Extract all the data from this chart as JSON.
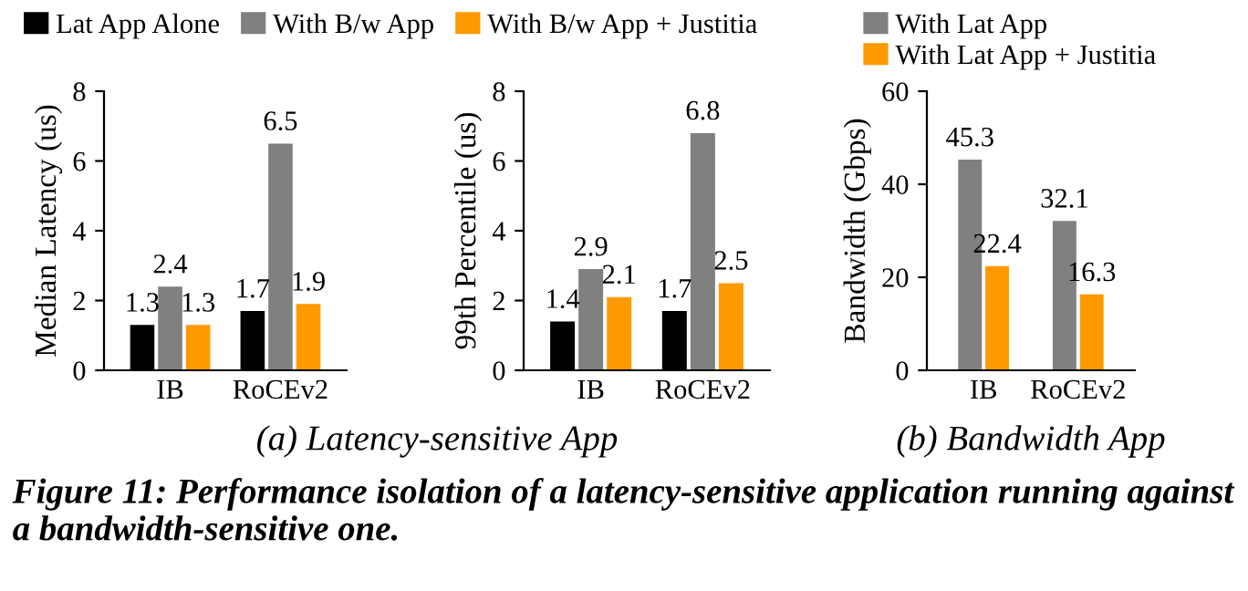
{
  "chart_data": [
    {
      "type": "bar",
      "ylabel": "Median Latency (us)",
      "categories": [
        "IB",
        "RoCEv2"
      ],
      "ylim": [
        0,
        8
      ],
      "yticks": [
        0,
        2,
        4,
        6,
        8
      ],
      "data_labels": true,
      "legend": "top",
      "grid": false,
      "series": [
        {
          "name": "Lat App Alone",
          "color": "#000000",
          "values": [
            1.3,
            1.7
          ]
        },
        {
          "name": "With B/w App",
          "color": "#808080",
          "values": [
            2.4,
            6.5
          ]
        },
        {
          "name": "With B/w App + Justitia",
          "color": "#ff9900",
          "values": [
            1.3,
            1.9
          ]
        }
      ],
      "annotations": [
        "(a) Latency-sensitive App",
        "Figure 11: Performance isolation of a latency-sensitive application running against a bandwidth-sensitive one."
      ]
    },
    {
      "type": "bar",
      "ylabel": "99th Percentile (us)",
      "categories": [
        "IB",
        "RoCEv2"
      ],
      "ylim": [
        0,
        8
      ],
      "yticks": [
        0,
        2,
        4,
        6,
        8
      ],
      "data_labels": true,
      "grid": false,
      "series": [
        {
          "color": "#000000",
          "values": [
            1.4,
            1.7
          ]
        },
        {
          "color": "#808080",
          "values": [
            2.9,
            6.8
          ]
        },
        {
          "color": "#ff9900",
          "values": [
            2.1,
            2.5
          ]
        }
      ]
    },
    {
      "type": "bar",
      "ylabel": "Bandwidth (Gbps)",
      "categories": [
        "IB",
        "RoCEv2"
      ],
      "ylim": [
        0,
        60
      ],
      "yticks": [
        0,
        20,
        40,
        60
      ],
      "data_labels": true,
      "legend": "top",
      "grid": false,
      "series": [
        {
          "name": "With Lat App",
          "color": "#808080",
          "values": [
            45.3,
            32.1
          ]
        },
        {
          "name": "With Lat App + Justitia",
          "color": "#ff9900",
          "values": [
            22.4,
            16.3
          ]
        }
      ],
      "annotations": [
        "(b) Bandwidth App"
      ]
    }
  ]
}
